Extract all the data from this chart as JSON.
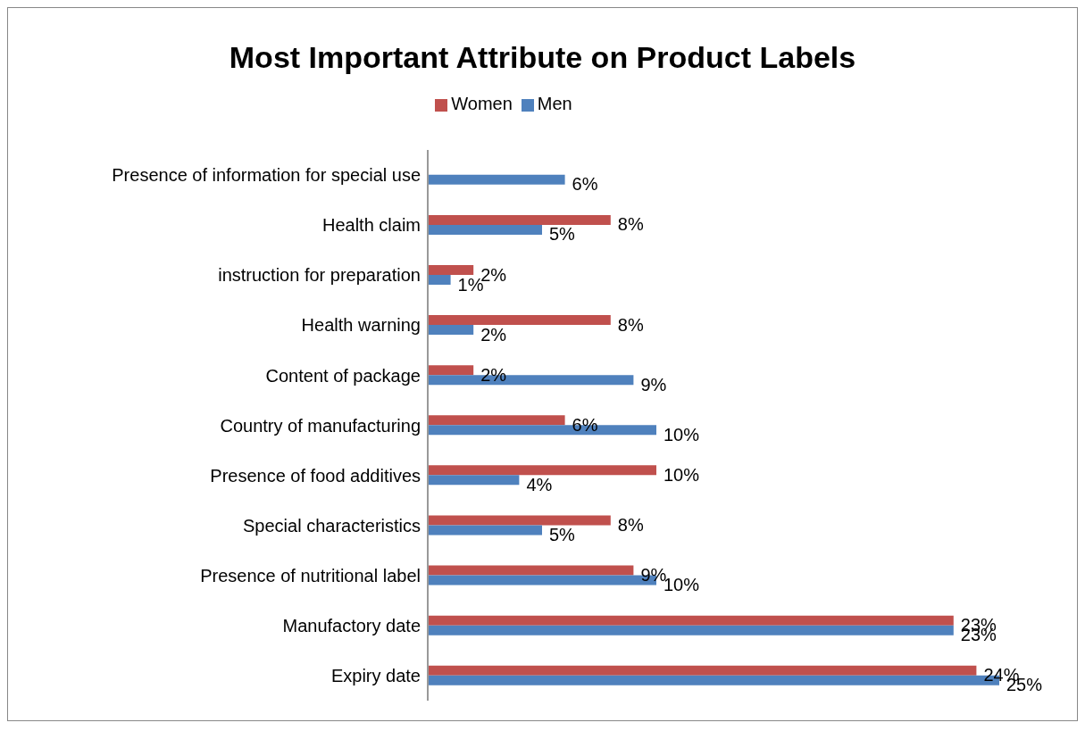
{
  "chart_data": {
    "type": "bar",
    "orientation": "horizontal",
    "title": "Most Important Attribute on Product Labels",
    "categories": [
      "Presence of information for special use",
      "Health claim",
      "instruction for preparation",
      "Health warning",
      "Content of package",
      "Country of manufacturing",
      "Presence of food additives",
      "Special characteristics",
      "Presence of nutritional label",
      "Manufactory date",
      "Expiry date"
    ],
    "series": [
      {
        "name": "Women",
        "color": "#c0504d",
        "values": [
          null,
          8,
          2,
          8,
          2,
          6,
          10,
          8,
          9,
          23,
          24
        ],
        "value_labels": [
          null,
          "8%",
          "2%",
          "8%",
          "2%",
          "6%",
          "10%",
          "8%",
          "9%",
          "23%",
          "24%"
        ]
      },
      {
        "name": "Men",
        "color": "#4f81bd",
        "values": [
          6,
          5,
          1,
          2,
          9,
          10,
          4,
          5,
          10,
          23,
          25
        ],
        "value_labels": [
          "6%",
          "5%",
          "1%",
          "2%",
          "9%",
          "10%",
          "4%",
          "5%",
          "10%",
          "23%",
          "25%"
        ]
      }
    ],
    "legend": "top",
    "grid": false
  }
}
